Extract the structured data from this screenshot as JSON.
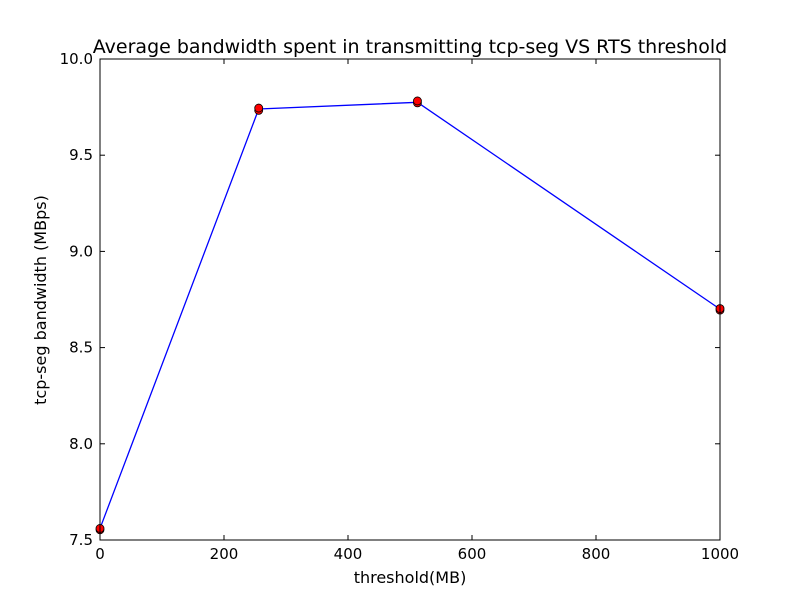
{
  "chart_data": {
    "type": "line",
    "title": "Average bandwidth spent in transmitting tcp-seg VS RTS threshold",
    "xlabel": "threshold(MB)",
    "ylabel": "tcp-seg bandwidth (MBps)",
    "xlim": [
      0,
      1000
    ],
    "ylim": [
      7.5,
      10.0
    ],
    "xticks": [
      0,
      200,
      400,
      600,
      800,
      1000
    ],
    "yticks": [
      7.5,
      8.0,
      8.5,
      9.0,
      9.5,
      10.0
    ],
    "xtick_labels": [
      "0",
      "200",
      "400",
      "600",
      "800",
      "1000"
    ],
    "ytick_labels": [
      "7.5",
      "8.0",
      "8.5",
      "9.0",
      "9.5",
      "10.0"
    ],
    "grid": false,
    "series": [
      {
        "x": [
          0,
          256,
          512,
          1000
        ],
        "y": [
          7.56,
          9.74,
          9.775,
          8.7
        ],
        "line_color": "#0000ff",
        "marker_color": "#ff0000"
      }
    ],
    "points": [
      {
        "x": 0,
        "y": 7.553
      },
      {
        "x": 0,
        "y": 7.56
      },
      {
        "x": 256,
        "y": 9.733
      },
      {
        "x": 256,
        "y": 9.745
      },
      {
        "x": 512,
        "y": 9.772
      },
      {
        "x": 512,
        "y": 9.782
      },
      {
        "x": 1000,
        "y": 8.695
      },
      {
        "x": 1000,
        "y": 8.703
      }
    ]
  }
}
